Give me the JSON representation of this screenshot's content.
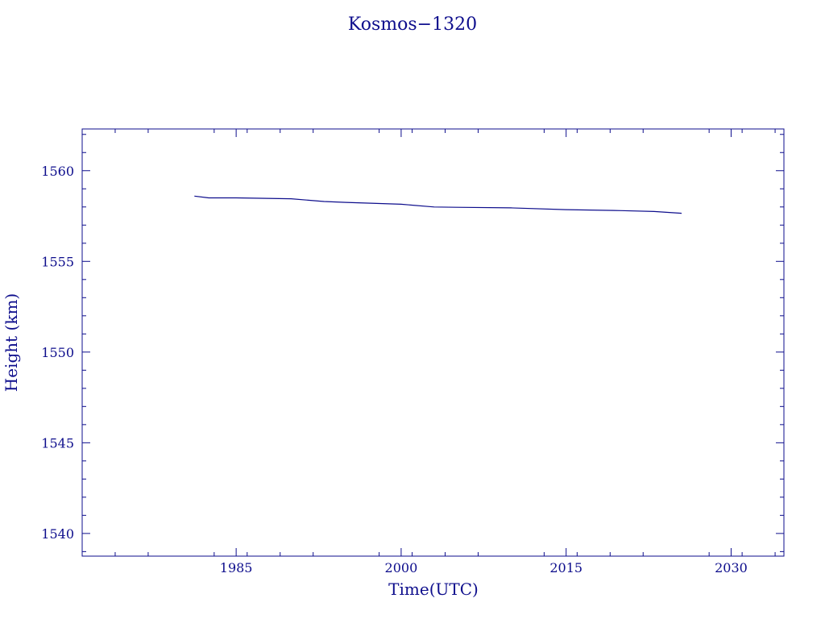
{
  "chart_data": {
    "type": "line",
    "title": "Kosmos−1320",
    "xlabel": "Time(UTC)",
    "ylabel": "Height (km)",
    "xlim": [
      1971.0,
      2034.8
    ],
    "ylim": [
      1538.75,
      1562.3
    ],
    "xticks": [
      1985,
      2000,
      2015,
      2030
    ],
    "yticks": [
      1540,
      1545,
      1550,
      1555,
      1560
    ],
    "grid": false,
    "series": [
      {
        "x": [
          1981.2,
          1982.5,
          1985,
          1990,
          1993,
          1995,
          2000,
          2003,
          2005,
          2010,
          2015,
          2020,
          2023,
          2025.5
        ],
        "y": [
          1558.6,
          1558.5,
          1558.5,
          1558.45,
          1558.3,
          1558.25,
          1558.15,
          1558.0,
          1557.98,
          1557.95,
          1557.85,
          1557.8,
          1557.75,
          1557.65
        ]
      }
    ],
    "colors": {
      "axis": "#0d0d8c",
      "line": "#0d0d8c"
    }
  }
}
